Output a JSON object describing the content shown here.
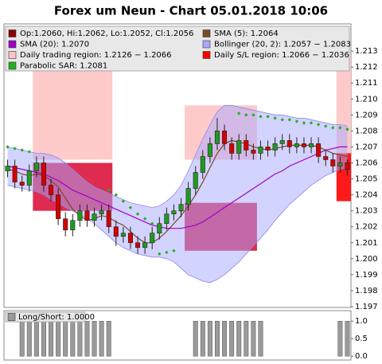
{
  "chart_data": [
    {
      "type": "candlestick",
      "title": "Forex um Neun - Chart 05.01.2018 10:06",
      "candle_name": "Op:1.2060, Hi:1.2062, Lo:1.2052, Cl:1.2056",
      "candle_color": "#8b0000",
      "up_color": "#1f9a1f",
      "down_color": "#d40000",
      "open": [
        1.2055,
        1.2058,
        1.2048,
        1.2046,
        1.2055,
        1.206,
        1.2046,
        1.204,
        1.2025,
        1.2018,
        1.2024,
        1.203,
        1.2024,
        1.2028,
        1.203,
        1.202,
        1.2014,
        1.2016,
        1.201,
        1.2007,
        1.201,
        1.2016,
        1.2022,
        1.2028,
        1.203,
        1.2034,
        1.2044,
        1.2054,
        1.2064,
        1.2072,
        1.208,
        1.2072,
        1.2066,
        1.2074,
        1.2068,
        1.2066,
        1.207,
        1.2068,
        1.2072,
        1.2074,
        1.207,
        1.2072,
        1.207,
        1.2072,
        1.2064,
        1.2062,
        1.2058,
        1.206
      ],
      "high": [
        1.2062,
        1.2062,
        1.2052,
        1.2059,
        1.2064,
        1.2064,
        1.205,
        1.2044,
        1.2029,
        1.2028,
        1.2034,
        1.2034,
        1.2032,
        1.2034,
        1.2034,
        1.2024,
        1.202,
        1.202,
        1.2014,
        1.2014,
        1.202,
        1.2026,
        1.2032,
        1.2034,
        1.2038,
        1.2048,
        1.2058,
        1.2068,
        1.2076,
        1.2088,
        1.2084,
        1.2076,
        1.2078,
        1.2078,
        1.2072,
        1.2074,
        1.2074,
        1.2076,
        1.2078,
        1.2078,
        1.2076,
        1.2076,
        1.2076,
        1.2076,
        1.2068,
        1.2066,
        1.2064,
        1.2062
      ],
      "low": [
        1.2051,
        1.2044,
        1.2042,
        1.2042,
        1.2051,
        1.2042,
        1.2036,
        1.2021,
        1.2014,
        1.2014,
        1.202,
        1.202,
        1.202,
        1.2024,
        1.2016,
        1.2008,
        1.201,
        1.2006,
        1.2003,
        1.2003,
        1.2006,
        1.2012,
        1.2018,
        1.2024,
        1.2026,
        1.203,
        1.204,
        1.205,
        1.206,
        1.2068,
        1.2068,
        1.2062,
        1.2062,
        1.2064,
        1.2062,
        1.2062,
        1.2064,
        1.2064,
        1.2068,
        1.2066,
        1.2066,
        1.2066,
        1.2066,
        1.206,
        1.2058,
        1.2054,
        1.2054,
        1.2052
      ],
      "close": [
        1.2058,
        1.2048,
        1.2046,
        1.2055,
        1.206,
        1.2046,
        1.204,
        1.2025,
        1.2018,
        1.2024,
        1.203,
        1.2024,
        1.2028,
        1.203,
        1.202,
        1.2014,
        1.2016,
        1.201,
        1.2007,
        1.201,
        1.2016,
        1.2022,
        1.2028,
        1.203,
        1.2034,
        1.2044,
        1.2054,
        1.2064,
        1.2072,
        1.208,
        1.2072,
        1.2066,
        1.2074,
        1.2068,
        1.2066,
        1.207,
        1.2068,
        1.2072,
        1.2074,
        1.207,
        1.2072,
        1.207,
        1.2072,
        1.2064,
        1.2062,
        1.2058,
        1.206,
        1.2056
      ],
      "series": [
        {
          "name": "SMA (5): 1.2064",
          "type": "line",
          "color": "#7a4a2a",
          "values": [
            1.2056,
            1.2055,
            1.2053,
            1.2052,
            1.2053,
            1.2052,
            1.2049,
            1.2045,
            1.2038,
            1.2031,
            1.2027,
            1.2024,
            1.2025,
            1.2027,
            1.2026,
            1.2023,
            1.2021,
            1.2017,
            1.2013,
            1.201,
            1.201,
            1.2013,
            1.2017,
            1.2022,
            1.2027,
            1.2033,
            1.204,
            1.2048,
            1.2057,
            1.2066,
            1.2072,
            1.2074,
            1.2073,
            1.2072,
            1.207,
            1.2069,
            1.2068,
            1.2069,
            1.207,
            1.2071,
            1.2071,
            1.2071,
            1.2071,
            1.207,
            1.2068,
            1.2066,
            1.2065,
            1.2064
          ]
        },
        {
          "name": "SMA (20): 1.2070",
          "type": "line",
          "color": "#a000c8",
          "values": [
            1.2058,
            1.2057,
            1.2056,
            1.2055,
            1.2054,
            1.2053,
            1.2051,
            1.2049,
            1.2046,
            1.2043,
            1.2041,
            1.2039,
            1.2037,
            1.2035,
            1.2033,
            1.2031,
            1.2029,
            1.2027,
            1.2025,
            1.2023,
            1.2021,
            1.202,
            1.2019,
            1.2019,
            1.2019,
            1.202,
            1.2021,
            1.2023,
            1.2026,
            1.2029,
            1.2032,
            1.2035,
            1.2038,
            1.2041,
            1.2044,
            1.2047,
            1.205,
            1.2053,
            1.2055,
            1.2058,
            1.206,
            1.2062,
            1.2064,
            1.2066,
            1.2068,
            1.2069,
            1.207,
            1.207
          ]
        },
        {
          "name": "Bollinger (20, 2): 1.2057 − 1.2083",
          "type": "band",
          "color": "#a8a8ff",
          "upper": [
            1.207,
            1.2069,
            1.2068,
            1.2067,
            1.2066,
            1.2066,
            1.2065,
            1.2063,
            1.206,
            1.2056,
            1.2052,
            1.2048,
            1.2045,
            1.2043,
            1.2041,
            1.2039,
            1.2037,
            1.2035,
            1.2034,
            1.2033,
            1.2032,
            1.2033,
            1.2036,
            1.204,
            1.2046,
            1.2055,
            1.2065,
            1.2075,
            1.2084,
            1.2092,
            1.2096,
            1.2096,
            1.2095,
            1.2094,
            1.2093,
            1.2092,
            1.2091,
            1.209,
            1.209,
            1.2089,
            1.2088,
            1.2088,
            1.2087,
            1.2086,
            1.2085,
            1.2084,
            1.2084,
            1.2083
          ],
          "lower": [
            1.2046,
            1.2045,
            1.2044,
            1.2043,
            1.2042,
            1.204,
            1.2037,
            1.2035,
            1.2032,
            1.203,
            1.2028,
            1.2025,
            1.2022,
            1.2018,
            1.2014,
            1.201,
            1.2007,
            1.2005,
            1.2003,
            1.2002,
            1.2001,
            1.2001,
            1.2,
            1.1998,
            1.1994,
            1.199,
            1.1988,
            1.1986,
            1.1985,
            1.1987,
            1.199,
            1.1994,
            1.1998,
            1.2003,
            1.2008,
            1.2013,
            1.2018,
            1.2024,
            1.2029,
            1.2034,
            1.2038,
            1.2042,
            1.2046,
            1.2049,
            1.2052,
            1.2054,
            1.2056,
            1.2057
          ]
        },
        {
          "name": "Parabolic SAR: 1.2081",
          "type": "dots",
          "color": "#22b022",
          "values": [
            1.207,
            1.2069,
            1.2068,
            1.2067,
            null,
            null,
            null,
            null,
            null,
            null,
            null,
            null,
            null,
            null,
            1.2043,
            1.204,
            1.2036,
            1.2032,
            1.2028,
            1.2025,
            1.2022,
            1.2003,
            1.2004,
            1.2005,
            1.203,
            null,
            null,
            null,
            null,
            null,
            null,
            null,
            1.2091,
            1.209,
            1.209,
            1.2089,
            1.2089,
            1.2088,
            1.2087,
            1.2087,
            1.2086,
            1.2085,
            1.2085,
            1.2084,
            1.2083,
            1.2082,
            1.2082,
            1.2081
          ]
        }
      ],
      "regions": [
        {
          "name": "Daily trading region: 1.2126 − 1.2066",
          "color": "#ffc4c4",
          "blocks": [
            {
              "from": 4,
              "to": 14,
              "high": 1.2126,
              "low": 1.2062,
              "color": "#ffc4c4"
            },
            {
              "from": 25,
              "to": 34,
              "high": 1.2096,
              "low": 1.2062,
              "color": "#ffc4c4"
            },
            {
              "from": 46,
              "to": 47,
              "high": 1.2126,
              "low": 1.2066,
              "color": "#ffc4c4"
            }
          ]
        },
        {
          "name": "Daily S/L region: 1.2066 − 1.2036",
          "color": "#ff0000",
          "blocks": [
            {
              "from": 4,
              "to": 14,
              "high": 1.206,
              "low": 1.203,
              "color": "#dc143c"
            },
            {
              "from": 25,
              "to": 34,
              "high": 1.2035,
              "low": 1.2005,
              "color": "#dc143c"
            },
            {
              "from": 46,
              "to": 47,
              "high": 1.2066,
              "low": 1.2036,
              "color": "#ff0000"
            }
          ]
        }
      ],
      "ylim": [
        1.19695,
        1.2147
      ],
      "yticks": [
        1.197,
        1.198,
        1.199,
        {
          "value": 1.2,
          "label": "1.200"
        },
        1.201,
        1.202,
        1.203,
        1.204,
        1.205,
        1.206,
        1.207,
        1.208,
        1.209,
        {
          "value": 1.21,
          "label": "1.210"
        },
        1.211,
        1.212,
        1.213
      ]
    },
    {
      "type": "bar",
      "series": [
        {
          "name": "Long/Short: 1.0000",
          "color": "#9a9a9a",
          "values": [
            0,
            0,
            1,
            1,
            1,
            1,
            1,
            1,
            1,
            1,
            1,
            1,
            1,
            1,
            1,
            0,
            0,
            0,
            0,
            0,
            0,
            0,
            0,
            0,
            0,
            0,
            1,
            1,
            1,
            1,
            1,
            1,
            1,
            1,
            1,
            1,
            0,
            0,
            0,
            0,
            0,
            0,
            0,
            0,
            0,
            0,
            1,
            1
          ]
        }
      ],
      "ylim": [
        -0.11,
        1.3
      ],
      "yticks": [
        {
          "value": 0,
          "label": "0.0"
        },
        {
          "value": 0.5,
          "label": "0.5"
        },
        {
          "value": 1,
          "label": "1.0"
        }
      ]
    }
  ]
}
